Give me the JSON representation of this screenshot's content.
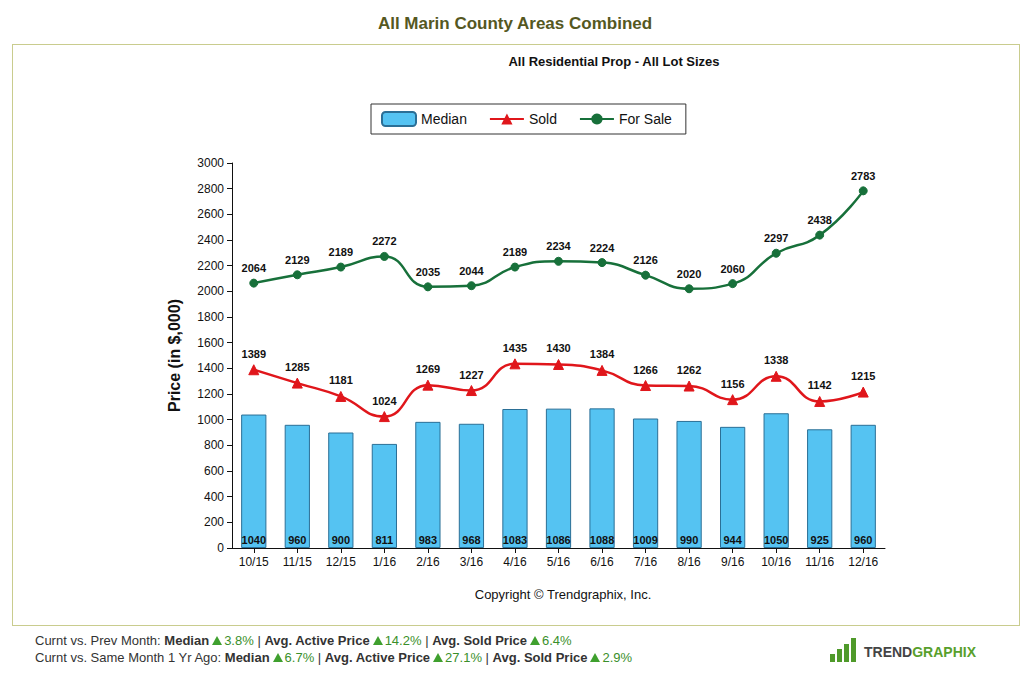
{
  "page": {
    "heading": "All Marin County Areas Combined",
    "copyright": "Copyright © Trendgraphix, Inc.",
    "separator": "|",
    "footer": [
      {
        "label": "Curnt vs. Prev Month:",
        "items": [
          {
            "name": "Median",
            "change": "3.8%"
          },
          {
            "name": "Avg. Active Price",
            "change": "14.2%"
          },
          {
            "name": "Avg. Sold Price",
            "change": "6.4%"
          }
        ]
      },
      {
        "label": "Curnt vs. Same Month 1 Yr Ago:",
        "items": [
          {
            "name": "Median",
            "change": "6.7%"
          },
          {
            "name": "Avg. Active Price",
            "change": "27.1%"
          },
          {
            "name": "Avg. Sold Price",
            "change": "2.9%"
          }
        ]
      }
    ],
    "logo": [
      "TREND",
      "GRAPHIX"
    ]
  },
  "chart_data": {
    "type": "bar",
    "title": "All Residential Prop - All Lot Sizes",
    "y_label": "Price (in $,000)",
    "categories": [
      "10/15",
      "11/15",
      "12/15",
      "1/16",
      "2/16",
      "3/16",
      "4/16",
      "5/16",
      "6/16",
      "7/16",
      "8/16",
      "9/16",
      "10/16",
      "11/16",
      "12/16"
    ],
    "series": [
      {
        "name": "Median",
        "type": "bar",
        "color": "#55c3f2",
        "values": [
          1040,
          960,
          900,
          811,
          983,
          968,
          1083,
          1086,
          1088,
          1009,
          990,
          944,
          1050,
          925,
          960
        ]
      },
      {
        "name": "Sold",
        "type": "line",
        "color": "#e0161b",
        "marker": "triangle",
        "values": [
          1389,
          1285,
          1181,
          1024,
          1269,
          1227,
          1435,
          1430,
          1384,
          1266,
          1262,
          1156,
          1338,
          1142,
          1215
        ]
      },
      {
        "name": "For Sale",
        "type": "line",
        "color": "#17703a",
        "marker": "circle",
        "values": [
          2064,
          2129,
          2189,
          2272,
          2035,
          2044,
          2189,
          2234,
          2224,
          2126,
          2020,
          2060,
          2297,
          2438,
          2783
        ]
      }
    ],
    "ylim": [
      0,
      3000
    ],
    "yticks": [
      0,
      200,
      400,
      600,
      800,
      1000,
      1200,
      1400,
      1600,
      1800,
      2000,
      2200,
      2400,
      2600,
      2800,
      3000
    ],
    "grid": false,
    "legend": "top",
    "data_labels": true
  }
}
